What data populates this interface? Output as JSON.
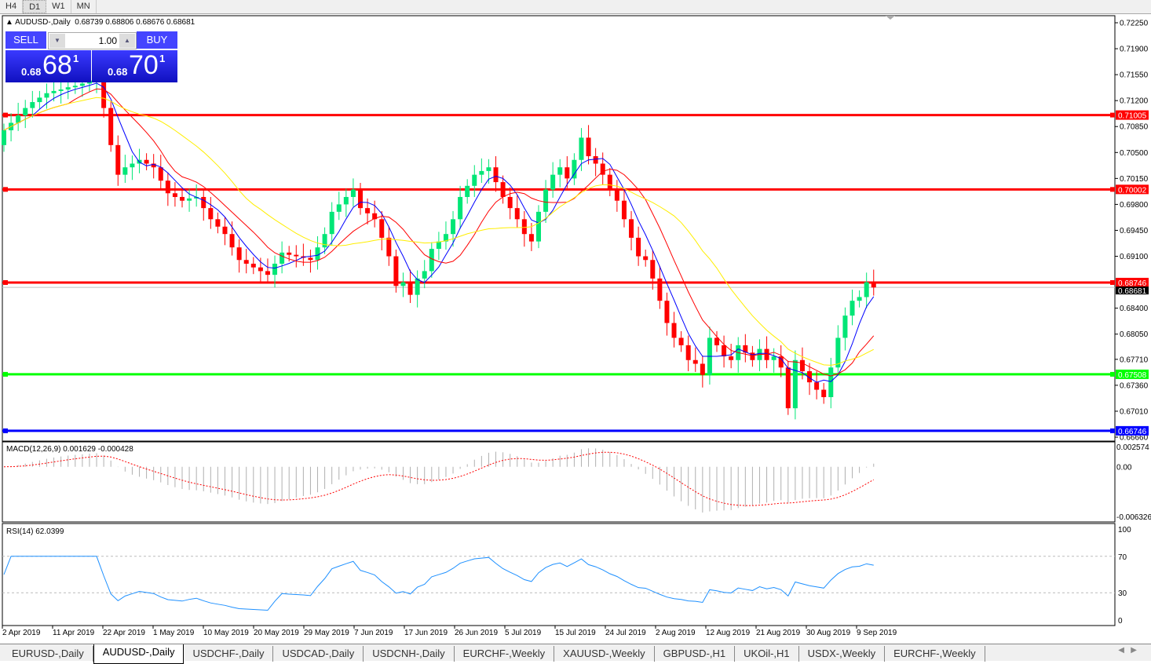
{
  "timeframes": [
    "H4",
    "D1",
    "W1",
    "MN"
  ],
  "active_timeframe": "D1",
  "header": {
    "symbol_label": "AUDUSD-,Daily",
    "ohlc": "0.68739 0.68806 0.68676 0.68681"
  },
  "trade_panel": {
    "sell_label": "SELL",
    "buy_label": "BUY",
    "lot": "1.00",
    "sell": {
      "prefix": "0.68",
      "big": "68",
      "sup": "1"
    },
    "buy": {
      "prefix": "0.68",
      "big": "70",
      "sup": "1"
    }
  },
  "colors": {
    "bull": "#00e676",
    "bear": "#ff0000",
    "ma_fast": "#0000ff",
    "ma_mid": "#ff0000",
    "ma_slow": "#ffee00",
    "support": "#00ff00",
    "bottom_line": "#0000ff"
  },
  "chart_data": {
    "type": "candlestick",
    "symbol": "AUDUSD-",
    "timeframe": "Daily",
    "ylim": [
      0.6666,
      0.7225
    ],
    "price_ticks": [
      "0.72250",
      "0.71900",
      "0.71550",
      "0.71200",
      "0.70850",
      "0.70500",
      "0.70150",
      "0.69800",
      "0.69450",
      "0.69100",
      "0.68400",
      "0.68050",
      "0.67710",
      "0.67360",
      "0.67010",
      "0.66660"
    ],
    "x_labels": [
      "2 Apr 2019",
      "11 Apr 2019",
      "22 Apr 2019",
      "1 May 2019",
      "10 May 2019",
      "20 May 2019",
      "29 May 2019",
      "7 Jun 2019",
      "17 Jun 2019",
      "26 Jun 2019",
      "5 Jul 2019",
      "15 Jul 2019",
      "24 Jul 2019",
      "2 Aug 2019",
      "12 Aug 2019",
      "21 Aug 2019",
      "30 Aug 2019",
      "9 Sep 2019"
    ],
    "closes": [
      0.708,
      0.709,
      0.71,
      0.711,
      0.7118,
      0.7124,
      0.713,
      0.7133,
      0.7135,
      0.7138,
      0.714,
      0.7143,
      0.7147,
      0.715,
      0.711,
      0.706,
      0.702,
      0.703,
      0.7035,
      0.704,
      0.7035,
      0.703,
      0.7012,
      0.6995,
      0.699,
      0.6985,
      0.6988,
      0.699,
      0.6975,
      0.696,
      0.695,
      0.694,
      0.6922,
      0.6905,
      0.69,
      0.6895,
      0.689,
      0.6885,
      0.69,
      0.6915,
      0.6912,
      0.691,
      0.6908,
      0.6905,
      0.6922,
      0.694,
      0.697,
      0.698,
      0.699,
      0.7,
      0.6975,
      0.6968,
      0.696,
      0.6935,
      0.691,
      0.687,
      0.6875,
      0.6858,
      0.688,
      0.689,
      0.692,
      0.693,
      0.694,
      0.696,
      0.699,
      0.7005,
      0.702,
      0.7025,
      0.703,
      0.701,
      0.699,
      0.6975,
      0.696,
      0.694,
      0.693,
      0.697,
      0.7,
      0.702,
      0.703,
      0.7015,
      0.704,
      0.707,
      0.7045,
      0.7035,
      0.702,
      0.7,
      0.6985,
      0.696,
      0.6935,
      0.691,
      0.6905,
      0.688,
      0.685,
      0.682,
      0.68,
      0.679,
      0.677,
      0.6765,
      0.675,
      0.68,
      0.679,
      0.6775,
      0.677,
      0.679,
      0.678,
      0.677,
      0.6785,
      0.677,
      0.6775,
      0.676,
      0.6705,
      0.677,
      0.6755,
      0.674,
      0.673,
      0.672,
      0.676,
      0.68,
      0.683,
      0.685,
      0.6855,
      0.6875,
      0.6868
    ],
    "hlines": [
      {
        "price": "0.71005",
        "color": "#ff0000"
      },
      {
        "price": "0.70002",
        "color": "#ff0000"
      },
      {
        "price": "0.68746",
        "color": "#ff0000"
      },
      {
        "price": "0.67508",
        "color": "#00ff00"
      },
      {
        "price": "0.66746",
        "color": "#0000ff"
      }
    ],
    "bid": {
      "price": "0.68681"
    },
    "macd": {
      "label": "MACD(12,26,9) 0.001629 -0.000428",
      "ticks": [
        "0.002574",
        "0.00",
        "-0.006326"
      ],
      "ylim": [
        -0.006326,
        0.002574
      ]
    },
    "rsi": {
      "label": "RSI(14) 62.0399",
      "ticks": [
        "100",
        "70",
        "30",
        "0"
      ],
      "levels": [
        70,
        30
      ],
      "ylim": [
        0,
        100
      ]
    }
  },
  "tabs": [
    "EURUSD-,Daily",
    "AUDUSD-,Daily",
    "USDCHF-,Daily",
    "USDCAD-,Daily",
    "USDCNH-,Daily",
    "EURCHF-,Weekly",
    "XAUUSD-,Weekly",
    "GBPUSD-,H1",
    "UKOil-,H1",
    "USDX-,Weekly",
    "EURCHF-,Weekly"
  ],
  "active_tab": "AUDUSD-,Daily"
}
